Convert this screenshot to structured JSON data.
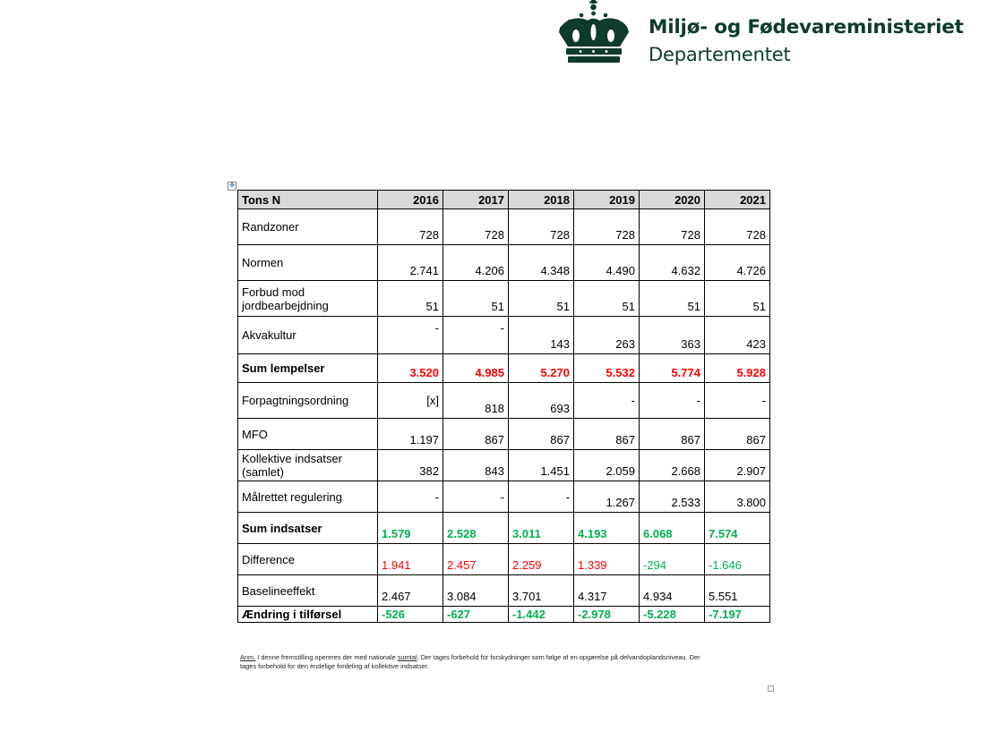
{
  "logo": {
    "line1": "Miljø- og Fødevareministeriet",
    "line2": "Departementet",
    "color": "#0e3b2b"
  },
  "table": {
    "headers": [
      "Tons N",
      "2016",
      "2017",
      "2018",
      "2019",
      "2020",
      "2021"
    ],
    "rows": [
      {
        "label": "Randzoner",
        "values": [
          "728",
          "728",
          "728",
          "728",
          "728",
          "728"
        ]
      },
      {
        "label": "Normen",
        "values": [
          "2.741",
          "4.206",
          "4.348",
          "4.490",
          "4.632",
          "4.726"
        ]
      },
      {
        "label": "Forbud mod jordbearbejdning",
        "values": [
          "51",
          "51",
          "51",
          "51",
          "51",
          "51"
        ]
      },
      {
        "label": "Akvakultur",
        "values": [
          "-",
          "-",
          "143",
          "263",
          "363",
          "423"
        ]
      },
      {
        "label": "Sum lempelser",
        "values": [
          "3.520",
          "4.985",
          "5.270",
          "5.532",
          "5.774",
          "5.928"
        ]
      },
      {
        "label": "Forpagtningsordning",
        "values": [
          "[x]",
          "818",
          "693",
          "-",
          "-",
          "-"
        ]
      },
      {
        "label": "MFO",
        "values": [
          "1.197",
          "867",
          "867",
          "867",
          "867",
          "867"
        ]
      },
      {
        "label": "Kollektive indsatser (samlet)",
        "values": [
          "382",
          "843",
          "1.451",
          "2.059",
          "2.668",
          "2.907"
        ]
      },
      {
        "label": "Målrettet regulering",
        "values": [
          "-",
          "-",
          "-",
          "1.267",
          "2.533",
          "3.800"
        ]
      },
      {
        "label": "Sum indsatser",
        "values": [
          "1.579",
          "2.528",
          "3.011",
          "4.193",
          "6.068",
          "7.574"
        ]
      },
      {
        "label": "Difference",
        "values": [
          "1.941",
          "2.457",
          "2.259",
          "1.339",
          "-294",
          "-1.646"
        ]
      },
      {
        "label": "Baselineeffekt",
        "values": [
          "2.467",
          "3.084",
          "3.701",
          "4.317",
          "4.934",
          "5.551"
        ]
      },
      {
        "label": "Ændring i tilførsel",
        "values": [
          "-526",
          "-627",
          "-1.442",
          "-2.978",
          "-5.228",
          "-7.197"
        ]
      }
    ]
  },
  "note": {
    "prefix": "Anm.",
    "part1": " I denne fremstilling opereres der med nationale ",
    "underlined": "sumtal",
    "part2": ". Der tages forbehold for forskydninger som følge af en opgørelse på delvandoplandsniveau.  Der tages forbehold for den endelige fordeling af kollektive indsatser."
  },
  "colors": {
    "red": "#ff0000",
    "green": "#00b050",
    "header_bg": "#d9d9d9"
  }
}
